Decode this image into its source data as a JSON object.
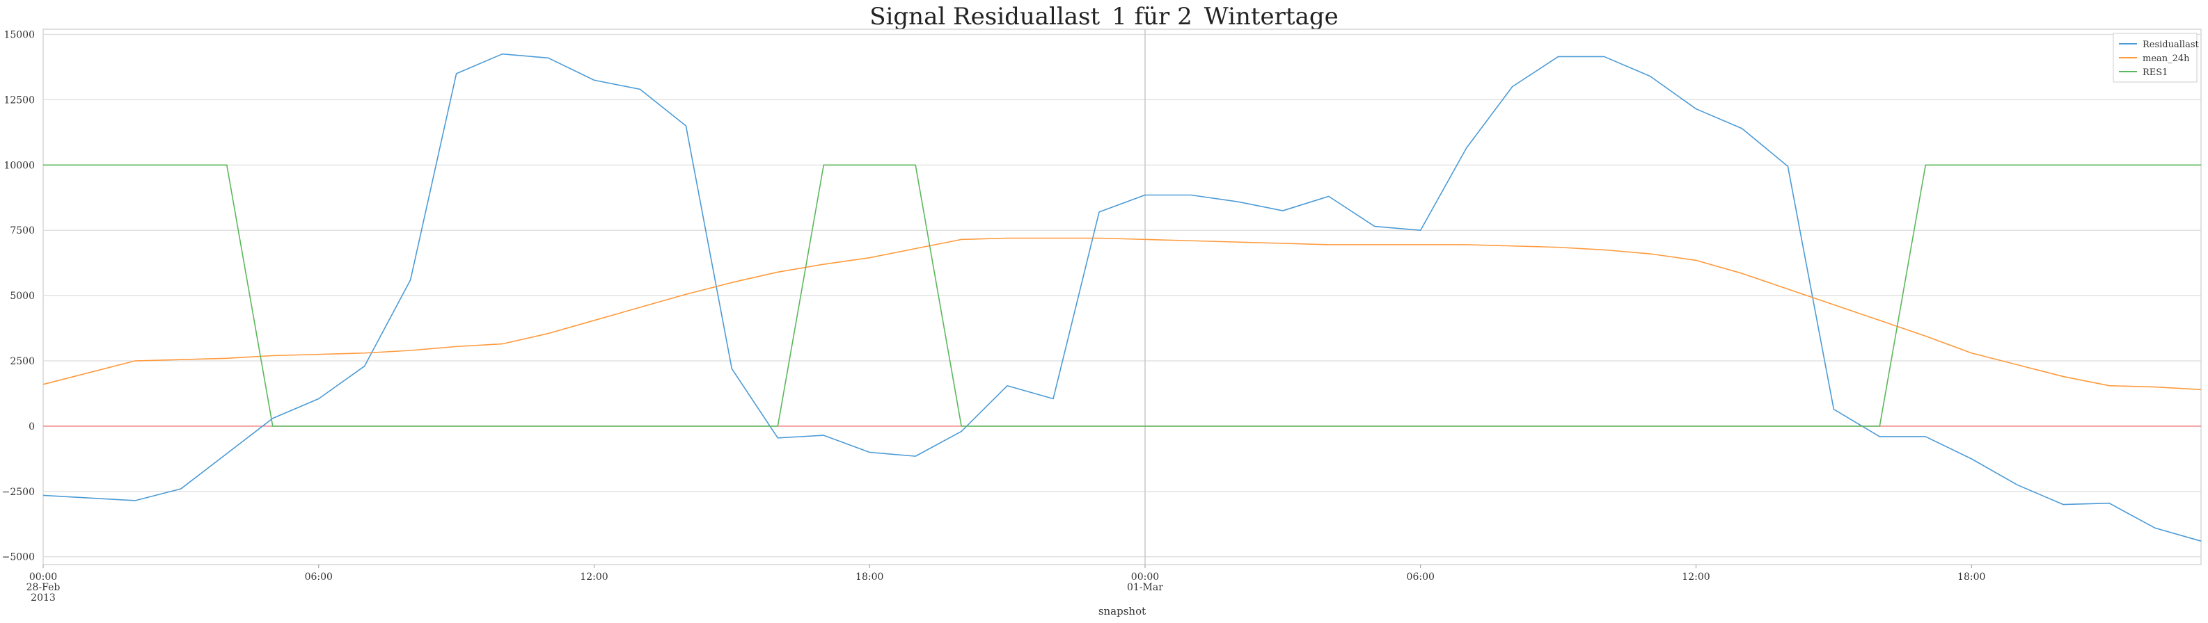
{
  "chart_data": {
    "type": "line",
    "title": "Signal Residuallast_1 für 2_Wintertage",
    "xlabel": "snapshot",
    "ylabel": "",
    "x_unit": "hour",
    "x": [
      "2013-02-28T00:00",
      "2013-02-28T01:00",
      "2013-02-28T02:00",
      "2013-02-28T03:00",
      "2013-02-28T04:00",
      "2013-02-28T05:00",
      "2013-02-28T06:00",
      "2013-02-28T07:00",
      "2013-02-28T08:00",
      "2013-02-28T09:00",
      "2013-02-28T10:00",
      "2013-02-28T11:00",
      "2013-02-28T12:00",
      "2013-02-28T13:00",
      "2013-02-28T14:00",
      "2013-02-28T15:00",
      "2013-02-28T16:00",
      "2013-02-28T17:00",
      "2013-02-28T18:00",
      "2013-02-28T19:00",
      "2013-02-28T20:00",
      "2013-02-28T21:00",
      "2013-02-28T22:00",
      "2013-02-28T23:00",
      "2013-03-01T00:00",
      "2013-03-01T01:00",
      "2013-03-01T02:00",
      "2013-03-01T03:00",
      "2013-03-01T04:00",
      "2013-03-01T05:00",
      "2013-03-01T06:00",
      "2013-03-01T07:00",
      "2013-03-01T08:00",
      "2013-03-01T09:00",
      "2013-03-01T10:00",
      "2013-03-01T11:00",
      "2013-03-01T12:00",
      "2013-03-01T13:00",
      "2013-03-01T14:00",
      "2013-03-01T15:00",
      "2013-03-01T16:00",
      "2013-03-01T17:00",
      "2013-03-01T18:00",
      "2013-03-01T19:00",
      "2013-03-01T20:00",
      "2013-03-01T21:00",
      "2013-03-01T22:00",
      "2013-03-01T23:00"
    ],
    "series": [
      {
        "name": "Residuallast",
        "color": "#4c9bd6",
        "values": [
          -2650,
          -2750,
          -2850,
          -2400,
          -1050,
          300,
          1050,
          2300,
          5600,
          13500,
          14250,
          14100,
          13250,
          12900,
          11500,
          2200,
          -450,
          -350,
          -1000,
          -1150,
          -200,
          1550,
          1050,
          8200,
          8850,
          8850,
          8600,
          8250,
          8800,
          7650,
          7500,
          10650,
          13000,
          14150,
          14150,
          13400,
          12150,
          11400,
          9950,
          650,
          -400,
          -400,
          -1250,
          -2250,
          -3000,
          -2950,
          -3900,
          -4400
        ]
      },
      {
        "name": "mean_24h",
        "color": "#ff9a3c",
        "values": [
          1600,
          2050,
          2500,
          2550,
          2600,
          2700,
          2750,
          2800,
          2900,
          3050,
          3150,
          3550,
          4050,
          4550,
          5050,
          5500,
          5900,
          6200,
          6450,
          6800,
          7150,
          7200,
          7200,
          7200,
          7150,
          7100,
          7050,
          7000,
          6950,
          6950,
          6950,
          6950,
          6900,
          6850,
          6750,
          6600,
          6350,
          5850,
          5250,
          4650,
          4050,
          3450,
          2800,
          2350,
          1900,
          1550,
          1500,
          1400
        ]
      },
      {
        "name": "RES1",
        "color": "#5cb85c",
        "values": [
          10000,
          10000,
          10000,
          10000,
          10000,
          0,
          0,
          0,
          0,
          0,
          0,
          0,
          0,
          0,
          0,
          0,
          0,
          10000,
          10000,
          10000,
          0,
          0,
          0,
          0,
          0,
          0,
          0,
          0,
          0,
          0,
          0,
          0,
          0,
          0,
          0,
          0,
          0,
          0,
          0,
          0,
          0,
          10000,
          10000,
          10000,
          10000,
          10000,
          10000,
          10000
        ]
      }
    ],
    "hlines": [
      {
        "y": 0,
        "color": "#f08080"
      }
    ],
    "vlines": [
      {
        "x": "2013-03-01T00:00",
        "color": "#c8c8c8"
      }
    ],
    "ylim": [
      -5300,
      15200
    ],
    "y_ticks": [
      -5000,
      -2500,
      0,
      2500,
      5000,
      7500,
      10000,
      12500,
      15000
    ],
    "y_tick_labels": [
      "−5000",
      "−2500",
      "0",
      "2500",
      "5000",
      "7500",
      "10000",
      "12500",
      "15000"
    ],
    "x_ticks": [
      {
        "hour": 0,
        "lines": [
          "00:00",
          "28-Feb",
          "2013"
        ]
      },
      {
        "hour": 6,
        "lines": [
          "06:00"
        ]
      },
      {
        "hour": 12,
        "lines": [
          "12:00"
        ]
      },
      {
        "hour": 18,
        "lines": [
          "18:00"
        ]
      },
      {
        "hour": 24,
        "lines": [
          "00:00",
          "01-Mar"
        ]
      },
      {
        "hour": 30,
        "lines": [
          "06:00"
        ]
      },
      {
        "hour": 36,
        "lines": [
          "12:00"
        ]
      },
      {
        "hour": 42,
        "lines": [
          "18:00"
        ]
      }
    ],
    "grid": true,
    "legend_position": "top-right"
  }
}
